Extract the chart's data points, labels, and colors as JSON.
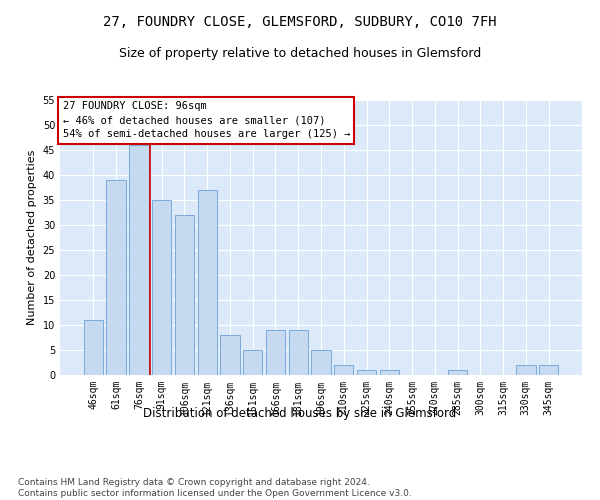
{
  "title": "27, FOUNDRY CLOSE, GLEMSFORD, SUDBURY, CO10 7FH",
  "subtitle": "Size of property relative to detached houses in Glemsford",
  "xlabel": "Distribution of detached houses by size in Glemsford",
  "ylabel": "Number of detached properties",
  "categories": [
    "46sqm",
    "61sqm",
    "76sqm",
    "91sqm",
    "106sqm",
    "121sqm",
    "136sqm",
    "151sqm",
    "166sqm",
    "181sqm",
    "196sqm",
    "210sqm",
    "225sqm",
    "240sqm",
    "255sqm",
    "270sqm",
    "285sqm",
    "300sqm",
    "315sqm",
    "330sqm",
    "345sqm"
  ],
  "values": [
    11,
    39,
    46,
    35,
    32,
    37,
    8,
    5,
    9,
    9,
    5,
    2,
    1,
    1,
    0,
    0,
    1,
    0,
    0,
    2,
    2
  ],
  "bar_color": "#c5d9f0",
  "bar_edge_color": "#7aabda",
  "vline_color": "#cc0000",
  "vline_x": 2.5,
  "annotation_text": "27 FOUNDRY CLOSE: 96sqm\n← 46% of detached houses are smaller (107)\n54% of semi-detached houses are larger (125) →",
  "annotation_box_color": "#ffffff",
  "annotation_box_edgecolor": "#cc0000",
  "ylim": [
    0,
    55
  ],
  "yticks": [
    0,
    5,
    10,
    15,
    20,
    25,
    30,
    35,
    40,
    45,
    50,
    55
  ],
  "background_color": "#dce9f8",
  "grid_color": "#ffffff",
  "footer": "Contains HM Land Registry data © Crown copyright and database right 2024.\nContains public sector information licensed under the Open Government Licence v3.0.",
  "title_fontsize": 10,
  "subtitle_fontsize": 9,
  "xlabel_fontsize": 8.5,
  "ylabel_fontsize": 8,
  "tick_fontsize": 7,
  "footer_fontsize": 6.5,
  "annotation_fontsize": 7.5
}
